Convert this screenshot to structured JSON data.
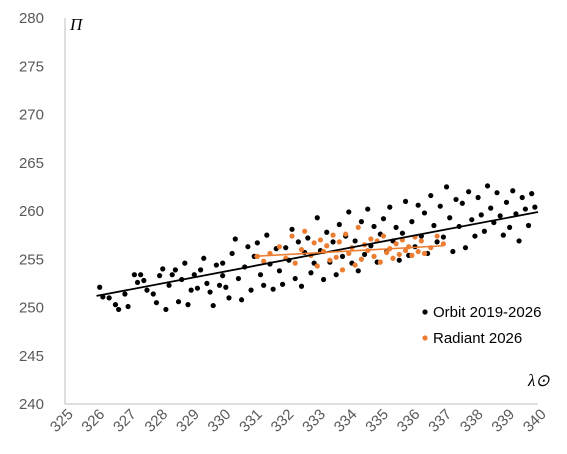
{
  "chart_data": {
    "type": "scatter",
    "xlabel": "λ⊙",
    "ylabel": "Π",
    "xlim": [
      325,
      340
    ],
    "ylim": [
      240,
      280
    ],
    "xticks": [
      325,
      326,
      327,
      328,
      329,
      330,
      331,
      332,
      333,
      334,
      335,
      336,
      337,
      338,
      339,
      340
    ],
    "yticks": [
      240,
      245,
      250,
      255,
      260,
      265,
      270,
      275,
      280
    ],
    "grid": false,
    "legend_position": "bottom-right",
    "colors": {
      "orbit": "#000000",
      "radiant": "#ed7d31"
    },
    "series": [
      {
        "name": "Orbit 2019-2026",
        "color": "#000000",
        "marker": "circle",
        "trendline": {
          "x": [
            326.0,
            340.0
          ],
          "y": [
            251.2,
            259.9
          ]
        },
        "points": [
          [
            326.1,
            252.1
          ],
          [
            326.2,
            251.1
          ],
          [
            326.4,
            251.0
          ],
          [
            326.6,
            250.3
          ],
          [
            326.7,
            249.8
          ],
          [
            326.9,
            251.4
          ],
          [
            327.0,
            250.1
          ],
          [
            327.2,
            253.4
          ],
          [
            327.3,
            252.6
          ],
          [
            327.4,
            253.4
          ],
          [
            327.5,
            252.8
          ],
          [
            327.6,
            251.8
          ],
          [
            327.8,
            251.4
          ],
          [
            327.9,
            250.5
          ],
          [
            328.0,
            253.3
          ],
          [
            328.1,
            254.0
          ],
          [
            328.2,
            249.8
          ],
          [
            328.3,
            252.3
          ],
          [
            328.4,
            253.4
          ],
          [
            328.5,
            253.9
          ],
          [
            328.6,
            250.6
          ],
          [
            328.7,
            252.9
          ],
          [
            328.8,
            254.6
          ],
          [
            328.9,
            250.3
          ],
          [
            329.0,
            251.8
          ],
          [
            329.1,
            253.4
          ],
          [
            329.2,
            252.0
          ],
          [
            329.3,
            253.9
          ],
          [
            329.4,
            255.1
          ],
          [
            329.5,
            252.5
          ],
          [
            329.6,
            251.6
          ],
          [
            329.7,
            250.2
          ],
          [
            329.8,
            254.4
          ],
          [
            329.9,
            252.3
          ],
          [
            330.0,
            253.3
          ],
          [
            330.0,
            254.6
          ],
          [
            330.1,
            252.1
          ],
          [
            330.2,
            251.0
          ],
          [
            330.3,
            255.6
          ],
          [
            330.4,
            257.1
          ],
          [
            330.5,
            253.0
          ],
          [
            330.6,
            250.8
          ],
          [
            330.7,
            254.2
          ],
          [
            330.8,
            256.3
          ],
          [
            330.9,
            251.8
          ],
          [
            331.0,
            255.3
          ],
          [
            331.1,
            256.7
          ],
          [
            331.2,
            253.4
          ],
          [
            331.3,
            252.3
          ],
          [
            331.4,
            257.5
          ],
          [
            331.5,
            254.5
          ],
          [
            331.6,
            251.9
          ],
          [
            331.7,
            256.1
          ],
          [
            331.8,
            253.8
          ],
          [
            331.9,
            252.4
          ],
          [
            332.0,
            256.2
          ],
          [
            332.1,
            254.9
          ],
          [
            332.2,
            258.1
          ],
          [
            332.3,
            253.0
          ],
          [
            332.4,
            256.8
          ],
          [
            332.5,
            252.2
          ],
          [
            332.6,
            255.7
          ],
          [
            332.7,
            257.2
          ],
          [
            332.8,
            253.6
          ],
          [
            332.9,
            254.6
          ],
          [
            333.0,
            259.3
          ],
          [
            333.1,
            255.9
          ],
          [
            333.2,
            252.9
          ],
          [
            333.3,
            257.8
          ],
          [
            333.4,
            254.7
          ],
          [
            333.5,
            256.8
          ],
          [
            333.6,
            253.4
          ],
          [
            333.7,
            258.6
          ],
          [
            333.8,
            255.3
          ],
          [
            333.9,
            257.4
          ],
          [
            334.0,
            259.9
          ],
          [
            334.1,
            254.6
          ],
          [
            334.2,
            256.9
          ],
          [
            334.3,
            253.8
          ],
          [
            334.4,
            258.9
          ],
          [
            334.5,
            255.5
          ],
          [
            334.6,
            260.2
          ],
          [
            334.7,
            256.4
          ],
          [
            334.8,
            258.4
          ],
          [
            334.9,
            254.7
          ],
          [
            335.0,
            257.6
          ],
          [
            335.1,
            259.2
          ],
          [
            335.2,
            255.8
          ],
          [
            335.3,
            260.4
          ],
          [
            335.4,
            256.9
          ],
          [
            335.5,
            258.3
          ],
          [
            335.6,
            254.9
          ],
          [
            335.7,
            257.7
          ],
          [
            335.8,
            261.0
          ],
          [
            335.9,
            255.4
          ],
          [
            336.0,
            258.9
          ],
          [
            336.1,
            256.3
          ],
          [
            336.2,
            260.6
          ],
          [
            336.3,
            257.4
          ],
          [
            336.4,
            259.8
          ],
          [
            336.5,
            255.6
          ],
          [
            336.6,
            261.6
          ],
          [
            336.7,
            258.5
          ],
          [
            336.8,
            256.8
          ],
          [
            336.9,
            260.5
          ],
          [
            337.0,
            257.3
          ],
          [
            337.1,
            262.5
          ],
          [
            337.2,
            259.3
          ],
          [
            337.3,
            255.8
          ],
          [
            337.4,
            261.2
          ],
          [
            337.5,
            258.4
          ],
          [
            337.6,
            260.8
          ],
          [
            337.7,
            256.2
          ],
          [
            337.8,
            262.0
          ],
          [
            337.9,
            259.1
          ],
          [
            338.0,
            257.4
          ],
          [
            338.1,
            261.4
          ],
          [
            338.2,
            259.6
          ],
          [
            338.3,
            257.9
          ],
          [
            338.4,
            262.6
          ],
          [
            338.5,
            260.3
          ],
          [
            338.6,
            258.8
          ],
          [
            338.7,
            261.9
          ],
          [
            338.8,
            259.5
          ],
          [
            338.9,
            257.5
          ],
          [
            339.0,
            260.9
          ],
          [
            339.1,
            258.3
          ],
          [
            339.2,
            262.1
          ],
          [
            339.3,
            259.7
          ],
          [
            339.4,
            256.9
          ],
          [
            339.5,
            261.4
          ],
          [
            339.6,
            260.2
          ],
          [
            339.7,
            258.5
          ],
          [
            339.8,
            261.8
          ],
          [
            339.9,
            260.4
          ]
        ]
      },
      {
        "name": "Radiant 2026",
        "color": "#ed7d31",
        "marker": "circle",
        "trendline": {
          "x": [
            331.0,
            337.0
          ],
          "y": [
            255.3,
            256.4
          ]
        },
        "points": [
          [
            331.1,
            255.3
          ],
          [
            331.3,
            254.8
          ],
          [
            331.5,
            255.6
          ],
          [
            331.8,
            256.3
          ],
          [
            332.0,
            255.1
          ],
          [
            332.2,
            257.4
          ],
          [
            332.3,
            254.6
          ],
          [
            332.5,
            256.0
          ],
          [
            332.6,
            257.9
          ],
          [
            332.8,
            255.4
          ],
          [
            332.9,
            256.7
          ],
          [
            333.0,
            254.3
          ],
          [
            333.1,
            257.0
          ],
          [
            333.2,
            255.8
          ],
          [
            333.3,
            256.4
          ],
          [
            333.4,
            254.9
          ],
          [
            333.5,
            257.5
          ],
          [
            333.6,
            255.2
          ],
          [
            333.7,
            256.8
          ],
          [
            333.8,
            253.9
          ],
          [
            333.9,
            257.6
          ],
          [
            334.0,
            255.6
          ],
          [
            334.1,
            256.2
          ],
          [
            334.2,
            254.4
          ],
          [
            334.3,
            258.3
          ],
          [
            334.4,
            255.0
          ],
          [
            334.5,
            256.5
          ],
          [
            334.6,
            255.9
          ],
          [
            334.7,
            257.1
          ],
          [
            334.8,
            255.3
          ],
          [
            334.9,
            256.9
          ],
          [
            335.0,
            254.7
          ],
          [
            335.1,
            257.4
          ],
          [
            335.2,
            255.7
          ],
          [
            335.3,
            256.1
          ],
          [
            335.4,
            255.1
          ],
          [
            335.5,
            256.6
          ],
          [
            335.6,
            255.5
          ],
          [
            335.7,
            257.0
          ],
          [
            335.8,
            255.9
          ],
          [
            335.9,
            256.3
          ],
          [
            336.0,
            255.4
          ],
          [
            336.1,
            257.3
          ],
          [
            336.2,
            255.8
          ],
          [
            336.3,
            256.9
          ],
          [
            336.4,
            255.6
          ],
          [
            336.6,
            256.2
          ],
          [
            336.8,
            257.4
          ],
          [
            337.0,
            256.6
          ]
        ]
      }
    ]
  }
}
